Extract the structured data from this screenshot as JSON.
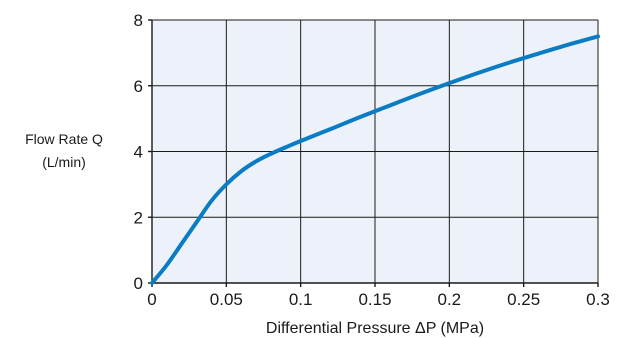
{
  "chart_data": {
    "type": "line",
    "title": "",
    "xlabel": "Differential Pressure ΔP (MPa)",
    "ylabel_line1": "Flow Rate Q",
    "ylabel_line2": "(L/min)",
    "xlim": [
      0,
      0.3
    ],
    "ylim": [
      0,
      8
    ],
    "xticks": [
      0,
      0.05,
      0.1,
      0.15,
      0.2,
      0.25,
      0.3
    ],
    "xtick_labels": [
      "0",
      "0.05",
      "0.1",
      "0.15",
      "0.2",
      "0.25",
      "0.3"
    ],
    "yticks": [
      0,
      2,
      4,
      6,
      8
    ],
    "ytick_labels": [
      "0",
      "2",
      "4",
      "6",
      "8"
    ],
    "grid": true,
    "series": [
      {
        "color": "#0a7cc4",
        "x": [
          0,
          0.01,
          0.02,
          0.03,
          0.04,
          0.05,
          0.06,
          0.07,
          0.08,
          0.09,
          0.1,
          0.12,
          0.14,
          0.16,
          0.18,
          0.2,
          0.22,
          0.24,
          0.26,
          0.28,
          0.3
        ],
        "y": [
          0,
          0.55,
          1.2,
          1.85,
          2.5,
          3.0,
          3.4,
          3.7,
          3.93,
          4.13,
          4.32,
          4.68,
          5.05,
          5.4,
          5.75,
          6.08,
          6.4,
          6.7,
          6.98,
          7.25,
          7.5
        ]
      }
    ]
  }
}
